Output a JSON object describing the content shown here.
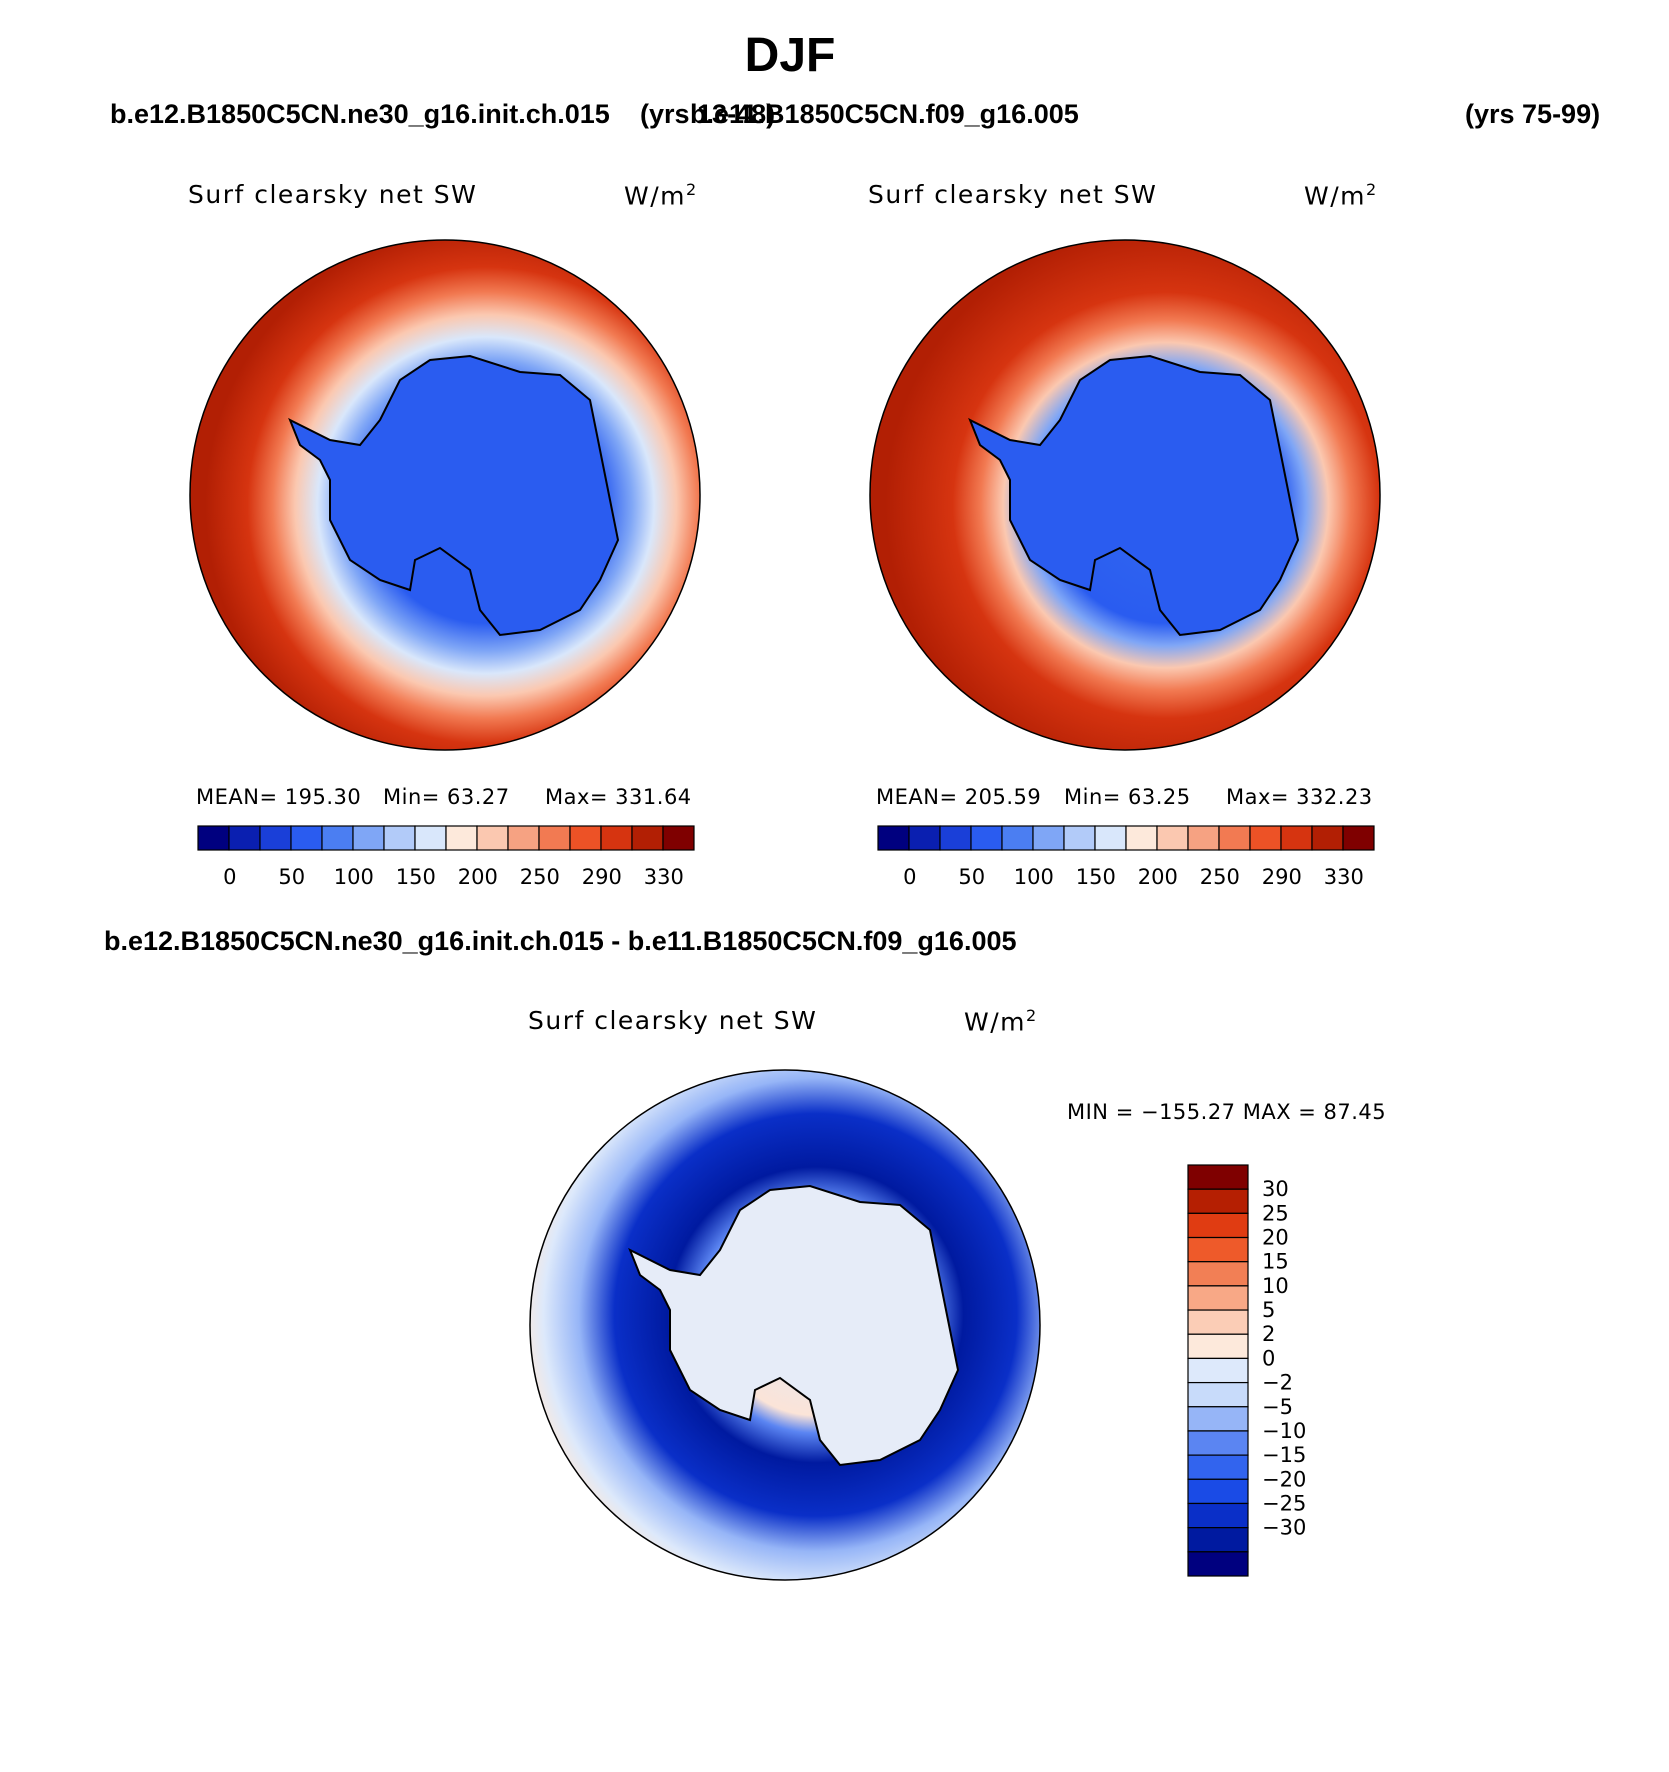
{
  "figure_title": "DJF",
  "top_case_a": "b.e12.B1850C5CN.ne30_g16.init.ch.015",
  "top_years_a": "(yrs 13-48)",
  "top_case_b": "b.e11.B1850C5CN.f09_g16.005",
  "top_years_b": "(yrs 75-99)",
  "diff_case_title": "b.e12.B1850C5CN.ne30_g16.init.ch.015 - b.e11.B1850C5CN.f09_g16.005",
  "variable_label": "Surf clearsky net SW",
  "units_base": "W/m",
  "units_exp": "2",
  "panel_a": {
    "mean_text": "MEAN= 195.30",
    "min_text": "Min=   63.27",
    "max_text": "Max= 331.64"
  },
  "panel_b": {
    "mean_text": "MEAN= 205.59",
    "min_text": "Min=   63.25",
    "max_text": "Max= 332.23"
  },
  "diff_panel": {
    "minmax_text": "MIN = −155.27 MAX =   87.45"
  },
  "colorbar_fields": {
    "colors": [
      "#00007f",
      "#0a1fb0",
      "#1a3fd8",
      "#2a5cf0",
      "#4b7ef2",
      "#7fa6f6",
      "#b2cbf9",
      "#d9e7fb",
      "#fde9db",
      "#fbc8b0",
      "#f6a282",
      "#f27a52",
      "#ed5226",
      "#d63410",
      "#b21f04",
      "#7f0000"
    ],
    "labels": [
      "0",
      "50",
      "100",
      "150",
      "200",
      "250",
      "290",
      "330"
    ]
  },
  "colorbar_diff": {
    "colors": [
      "#00007f",
      "#001aa0",
      "#0a2fc8",
      "#1a4be6",
      "#3264ee",
      "#5b85f2",
      "#96b5f7",
      "#c8dbfa",
      "#dde9fb",
      "#fde9db",
      "#fbcdb6",
      "#f8a886",
      "#f27f55",
      "#ee5a2a",
      "#e03c12",
      "#b51f02",
      "#7f0000"
    ],
    "labels": [
      "30",
      "25",
      "20",
      "15",
      "10",
      "5",
      "2",
      "0",
      "−2",
      "−5",
      "−10",
      "−15",
      "−20",
      "−25",
      "−30"
    ]
  }
}
